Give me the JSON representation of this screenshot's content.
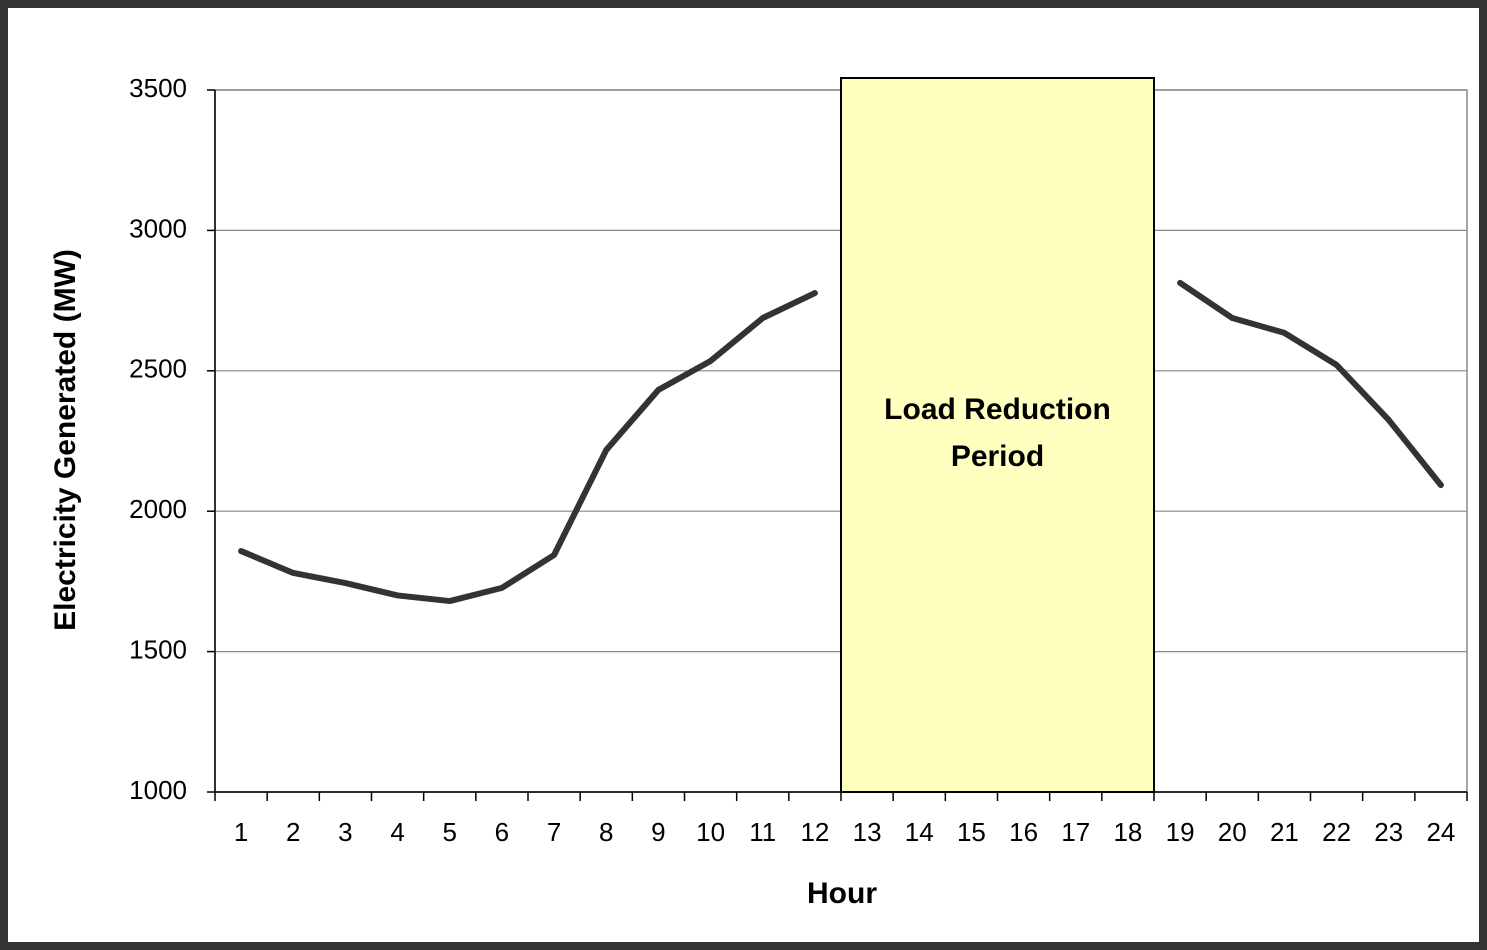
{
  "chart_data": {
    "type": "line",
    "x_label": "Hour",
    "y_label": "Electricity Generated (MW)",
    "categories": [
      "1",
      "2",
      "3",
      "4",
      "5",
      "6",
      "7",
      "8",
      "9",
      "10",
      "11",
      "12",
      "13",
      "14",
      "15",
      "16",
      "17",
      "18",
      "19",
      "20",
      "21",
      "22",
      "23",
      "24"
    ],
    "series": [
      {
        "color": "#333333",
        "values": [
          1858,
          1780,
          1744,
          1700,
          1680,
          1727,
          1844,
          2218,
          2432,
          2535,
          2688,
          2777,
          null,
          null,
          null,
          null,
          null,
          null,
          2813,
          2688,
          2635,
          2521,
          2325,
          2093
        ]
      }
    ],
    "ylim": [
      1000,
      3500
    ],
    "yticks": [
      1000,
      1500,
      2000,
      2500,
      3000,
      3500
    ],
    "grid": true,
    "annotation": {
      "lines": [
        "Load Reduction",
        "Period"
      ],
      "start": "13",
      "end": "18",
      "color": "#ffffc0"
    }
  }
}
